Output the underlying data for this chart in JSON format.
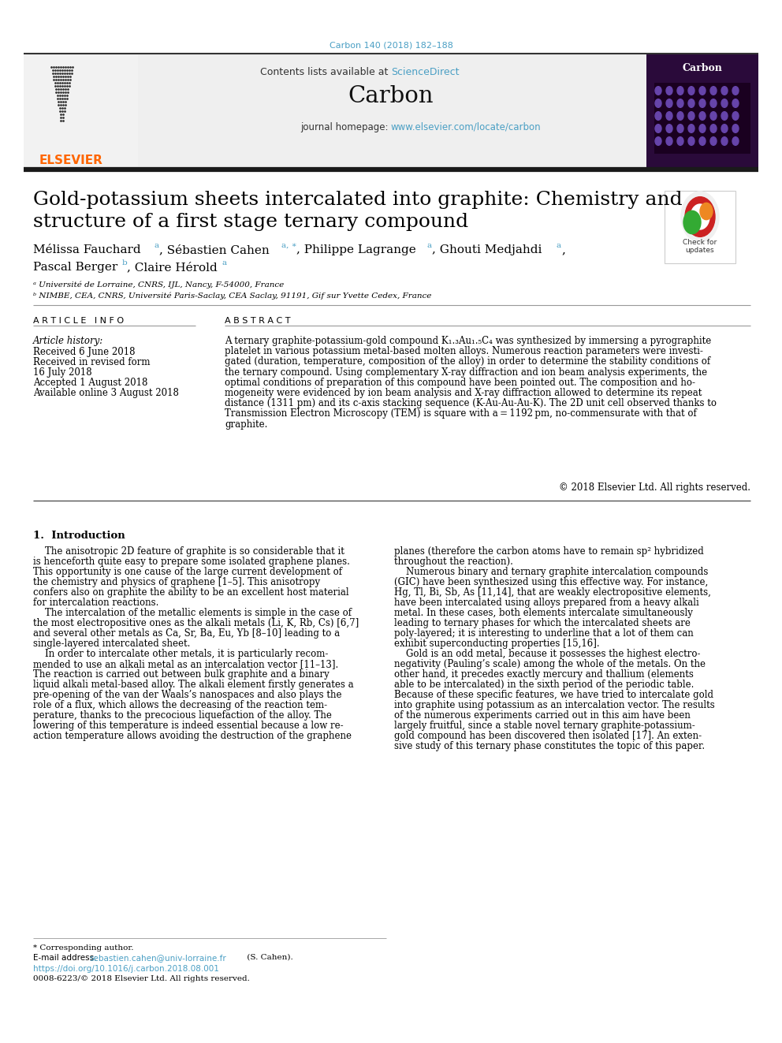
{
  "journal_ref": "Carbon 140 (2018) 182–188",
  "science_direct": "ScienceDirect",
  "journal_name": "Carbon",
  "journal_homepage": "www.elsevier.com/locate/carbon",
  "paper_title_line1": "Gold-potassium sheets intercalated into graphite: Chemistry and",
  "paper_title_line2": "structure of a first stage ternary compound",
  "affil_a": "ᵃ Université de Lorraine, CNRS, IJL, Nancy, F-54000, France",
  "affil_b": "ᵇ NIMBE, CEA, CNRS, Université Paris-Saclay, CEA Saclay, 91191, Gif sur Yvette Cedex, France",
  "article_info_title": "A R T I C L E   I N F O",
  "abstract_title": "A B S T R A C T",
  "article_history": "Article history:",
  "received": "Received 6 June 2018",
  "received_revised": "Received in revised form",
  "revised_date": "16 July 2018",
  "accepted": "Accepted 1 August 2018",
  "available": "Available online 3 August 2018",
  "copyright": "© 2018 Elsevier Ltd. All rights reserved.",
  "intro_heading": "1.  Introduction",
  "footnote_corresponding": "* Corresponding author.",
  "footnote_email_label": "E-mail address: ",
  "footnote_email": "sebastien.cahen@univ-lorraine.fr",
  "footnote_email_suffix": " (S. Cahen).",
  "footnote_doi": "https://doi.org/10.1016/j.carbon.2018.08.001",
  "footnote_issn": "0008-6223/© 2018 Elsevier Ltd. All rights reserved.",
  "bg_color": "#ffffff",
  "link_color": "#4a9fc4",
  "header_bg": "#efefef",
  "thick_bar_color": "#1a1a1a",
  "thin_line_color": "#999999"
}
